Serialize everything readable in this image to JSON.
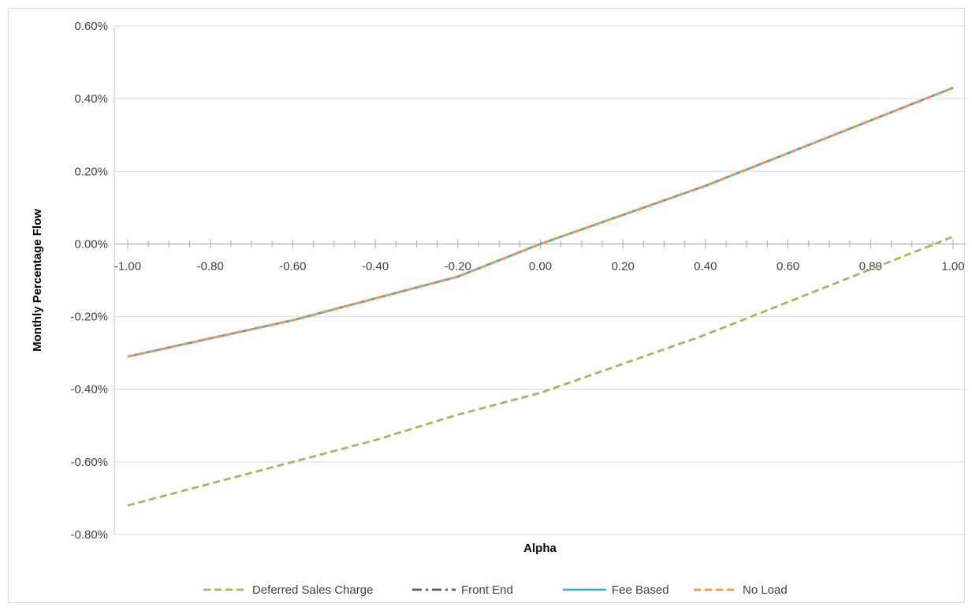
{
  "chart_data": {
    "type": "line",
    "xlabel": "Alpha",
    "ylabel": "Monthly Percentage Flow",
    "xlim": [
      -1.0,
      1.0
    ],
    "ylim": [
      -0.008,
      0.006
    ],
    "x_ticks": [
      -1.0,
      -0.8,
      -0.6,
      -0.4,
      -0.2,
      0.0,
      0.2,
      0.4,
      0.6,
      0.8,
      1.0
    ],
    "x_tick_labels": [
      "-1.00",
      "-0.80",
      "-0.60",
      "-0.40",
      "-0.20",
      "0.00",
      "0.20",
      "0.40",
      "0.60",
      "0.80",
      "1.00"
    ],
    "y_ticks": [
      0.006,
      0.004,
      0.002,
      0.0,
      -0.002,
      -0.004,
      -0.006,
      -0.008
    ],
    "y_tick_labels": [
      "0.60%",
      "0.40%",
      "0.20%",
      "0.00%",
      "-0.20%",
      "-0.40%",
      "-0.60%",
      "-0.80%"
    ],
    "grid": "horizontal",
    "legend_position": "bottom",
    "x": [
      -1.0,
      -0.8,
      -0.6,
      -0.4,
      -0.2,
      0.0,
      0.2,
      0.4,
      0.6,
      0.8,
      1.0
    ],
    "series": [
      {
        "name": "Deferred Sales Charge",
        "color": "#9bbb59",
        "style": "dashed",
        "values": [
          -0.0072,
          -0.0066,
          -0.006,
          -0.0054,
          -0.0047,
          -0.0041,
          -0.0033,
          -0.0025,
          -0.0016,
          -0.0007,
          0.0002
        ]
      },
      {
        "name": "Front End",
        "color": "#4f5b6e",
        "style": "dash-dot",
        "values": [
          -0.0031,
          -0.0026,
          -0.0021,
          -0.0015,
          -0.0009,
          0.0,
          0.0008,
          0.0016,
          0.0025,
          0.0034,
          0.0043
        ]
      },
      {
        "name": "Fee Based",
        "color": "#4bacc6",
        "style": "solid",
        "values": [
          -0.0031,
          -0.0026,
          -0.0021,
          -0.0015,
          -0.0009,
          0.0,
          0.0008,
          0.0016,
          0.0025,
          0.0034,
          0.0043
        ]
      },
      {
        "name": "No Load",
        "color": "#f79646",
        "style": "dashed",
        "values": [
          -0.0031,
          -0.0026,
          -0.0021,
          -0.0015,
          -0.0009,
          0.0,
          0.0008,
          0.0016,
          0.0025,
          0.0034,
          0.0043
        ]
      }
    ]
  }
}
